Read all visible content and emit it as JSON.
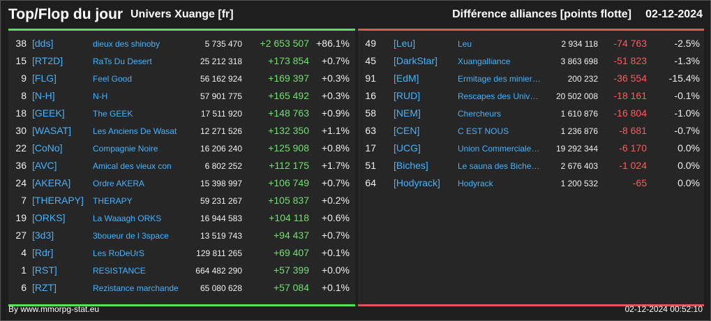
{
  "header": {
    "title": "Top/Flop du jour",
    "universe": "Univers Xuange [fr]",
    "subtitle": "Différence alliances [points flotte]",
    "date": "02-12-2024"
  },
  "top": [
    {
      "rank": "38",
      "tag": "[dds]",
      "name": "dieux des shinoby",
      "points": "5 735 470",
      "diff": "+2 653 507",
      "pct": "+86.1%"
    },
    {
      "rank": "15",
      "tag": "[RT2D]",
      "name": "RaTs Du Desert",
      "points": "25 212 318",
      "diff": "+173 854",
      "pct": "+0.7%"
    },
    {
      "rank": "9",
      "tag": "[FLG]",
      "name": "Feel Good",
      "points": "56 162 924",
      "diff": "+169 397",
      "pct": "+0.3%"
    },
    {
      "rank": "8",
      "tag": "[N-H]",
      "name": "N-H",
      "points": "57 901 775",
      "diff": "+165 492",
      "pct": "+0.3%"
    },
    {
      "rank": "18",
      "tag": "[GEEK]",
      "name": "The GEEK",
      "points": "17 511 920",
      "diff": "+148 763",
      "pct": "+0.9%"
    },
    {
      "rank": "30",
      "tag": "[WASAT]",
      "name": "Les Anciens De Wasat",
      "points": "12 271 526",
      "diff": "+132 350",
      "pct": "+1.1%"
    },
    {
      "rank": "22",
      "tag": "[CoNo]",
      "name": "Compagnie Noire",
      "points": "16 206 240",
      "diff": "+125 908",
      "pct": "+0.8%"
    },
    {
      "rank": "36",
      "tag": "[AVC]",
      "name": "Amical des vieux con",
      "points": "6 802 252",
      "diff": "+112 175",
      "pct": "+1.7%"
    },
    {
      "rank": "24",
      "tag": "[AKERA]",
      "name": "Ordre AKERA",
      "points": "15 398 997",
      "diff": "+106 749",
      "pct": "+0.7%"
    },
    {
      "rank": "7",
      "tag": "[THERAPY]",
      "name": "THERAPY",
      "points": "59 231 267",
      "diff": "+105 837",
      "pct": "+0.2%"
    },
    {
      "rank": "19",
      "tag": "[ORKS]",
      "name": "La Waaagh ORKS",
      "points": "16 944 583",
      "diff": "+104 118",
      "pct": "+0.6%"
    },
    {
      "rank": "27",
      "tag": "[3d3]",
      "name": "3boueur de l 3space",
      "points": "13 519 743",
      "diff": "+94 437",
      "pct": "+0.7%"
    },
    {
      "rank": "4",
      "tag": "[Rdr]",
      "name": "Les RoDeUrS",
      "points": "129 811 265",
      "diff": "+69 407",
      "pct": "+0.1%"
    },
    {
      "rank": "1",
      "tag": "[RST]",
      "name": "RESISTANCE",
      "points": "664 482 290",
      "diff": "+57 399",
      "pct": "+0.0%"
    },
    {
      "rank": "6",
      "tag": "[RZT]",
      "name": "Rezistance marchande",
      "points": "65 080 628",
      "diff": "+57 084",
      "pct": "+0.1%"
    }
  ],
  "flop": [
    {
      "rank": "49",
      "tag": "[Leu]",
      "name": "Leu",
      "points": "2 934 118",
      "diff": "-74 763",
      "pct": "-2.5%"
    },
    {
      "rank": "45",
      "tag": "[DarkStar]",
      "name": "Xuangalliance",
      "points": "3 863 698",
      "diff": "-51 823",
      "pct": "-1.3%"
    },
    {
      "rank": "91",
      "tag": "[EdM]",
      "name": "Ermitage des minier…",
      "points": "200 232",
      "diff": "-36 554",
      "pct": "-15.4%"
    },
    {
      "rank": "16",
      "tag": "[RUD]",
      "name": "Rescapes des Univ…",
      "points": "20 502 008",
      "diff": "-18 161",
      "pct": "-0.1%"
    },
    {
      "rank": "58",
      "tag": "[NEM]",
      "name": "Chercheurs",
      "points": "1 610 876",
      "diff": "-16 804",
      "pct": "-1.0%"
    },
    {
      "rank": "63",
      "tag": "[CEN]",
      "name": "C EST NOUS",
      "points": "1 236 876",
      "diff": "-8 681",
      "pct": "-0.7%"
    },
    {
      "rank": "17",
      "tag": "[UCG]",
      "name": "Union Commerciale…",
      "points": "19 292 344",
      "diff": "-6 170",
      "pct": "0.0%"
    },
    {
      "rank": "51",
      "tag": "[Biches]",
      "name": "Le sauna des Biche…",
      "points": "2 676 403",
      "diff": "-1 024",
      "pct": "0.0%"
    },
    {
      "rank": "64",
      "tag": "[Hodyrack]",
      "name": "Hodyrack",
      "points": "1 200 532",
      "diff": "-65",
      "pct": "0.0%"
    }
  ],
  "footer": {
    "credit": "By www.mmorpg-stat.eu",
    "timestamp": "02-12-2024 00:52:10"
  },
  "colors": {
    "positive": "#6ee06e",
    "negative": "#ff5a5a",
    "link": "#43b3ff"
  }
}
